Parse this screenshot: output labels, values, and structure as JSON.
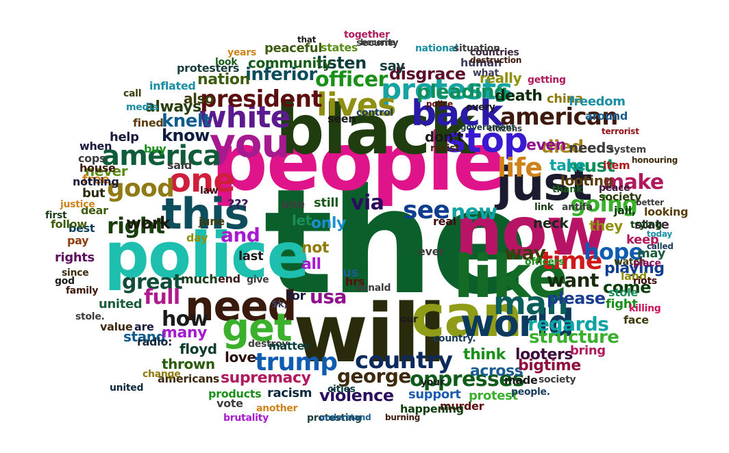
{
  "words": [
    {
      "text": "the",
      "color": "#0b5f2a"
    },
    {
      "text": "people",
      "color": "#e0148a"
    },
    {
      "text": "black",
      "color": "#1f3d0f"
    },
    {
      "text": "will",
      "color": "#2a2a0c"
    },
    {
      "text": "police",
      "color": "#1fbfb0"
    },
    {
      "text": "now",
      "color": "#b81466"
    },
    {
      "text": "like",
      "color": "#136b25"
    },
    {
      "text": "can",
      "color": "#8f9c17"
    },
    {
      "text": "just",
      "color": "#1b1b2f"
    },
    {
      "text": "need",
      "color": "#3a1a0c"
    },
    {
      "text": "this",
      "color": "#0e4d5c"
    },
    {
      "text": "you",
      "color": "#a61a8f"
    },
    {
      "text": "get",
      "color": "#3ab02d"
    },
    {
      "text": "world",
      "color": "#0c3a5e"
    },
    {
      "text": "man",
      "color": "#0c5e5a"
    },
    {
      "text": "one",
      "color": "#d01f3d"
    },
    {
      "text": "back",
      "color": "#2a1aa8"
    },
    {
      "text": "stop",
      "color": "#3a1ad0"
    },
    {
      "text": "protests",
      "color": "#18a3a3"
    },
    {
      "text": "lives",
      "color": "#8f8f14"
    },
    {
      "text": "white",
      "color": "#5c1a8f"
    },
    {
      "text": "president",
      "color": "#5c0f0f"
    },
    {
      "text": "america",
      "color": "#0f5c3a"
    },
    {
      "text": "american",
      "color": "#3d1a0c"
    },
    {
      "text": "life",
      "color": "#d0821a"
    },
    {
      "text": "time",
      "color": "#d01a1a"
    },
    {
      "text": "see",
      "color": "#0f3d8f"
    },
    {
      "text": "country",
      "color": "#0c2a5e"
    },
    {
      "text": "trump",
      "color": "#0f5cb0"
    },
    {
      "text": "george",
      "color": "#3d2a0c"
    },
    {
      "text": "oppresses",
      "color": "#0f5c1a"
    },
    {
      "text": "violence",
      "color": "#2a0f5c"
    },
    {
      "text": "supremacy",
      "color": "#b01a5c"
    },
    {
      "text": "good",
      "color": "#8f7a14"
    },
    {
      "text": "right",
      "color": "#1a3d0c"
    },
    {
      "text": "great",
      "color": "#0f4d3a"
    },
    {
      "text": "full",
      "color": "#b01a8f"
    },
    {
      "text": "how",
      "color": "#1a1a1a"
    },
    {
      "text": "usa",
      "color": "#8f0f8f"
    },
    {
      "text": "want",
      "color": "#1a2a0c"
    },
    {
      "text": "hope",
      "color": "#0f5cb0"
    },
    {
      "text": "going",
      "color": "#3ab02d"
    },
    {
      "text": "make",
      "color": "#b01a5c"
    },
    {
      "text": "must",
      "color": "#0c8f5c"
    },
    {
      "text": "died",
      "color": "#a6821a"
    },
    {
      "text": "officer",
      "color": "#1a8f1a"
    },
    {
      "text": "pleading",
      "color": "#0f8f5c"
    },
    {
      "text": "disgrace",
      "color": "#5c0f2a"
    },
    {
      "text": "listen",
      "color": "#0c3d3d"
    },
    {
      "text": "inferior",
      "color": "#0c4d5c"
    },
    {
      "text": "community",
      "color": "#1a5c1a"
    },
    {
      "text": "nation",
      "color": "#3d5c0c"
    },
    {
      "text": "knelt",
      "color": "#0f5c8f"
    },
    {
      "text": "know",
      "color": "#0c1a3d"
    },
    {
      "text": "always",
      "color": "#2a3d0c"
    },
    {
      "text": "also",
      "color": "#3d3d0c"
    },
    {
      "text": "regards",
      "color": "#0fa3a3"
    },
    {
      "text": "structure",
      "color": "#3ab02d"
    },
    {
      "text": "please",
      "color": "#1a3d8f"
    },
    {
      "text": "come",
      "color": "#0c3d0c"
    },
    {
      "text": "playing",
      "color": "#0f3d8f"
    },
    {
      "text": "looters",
      "color": "#3d0c3d"
    },
    {
      "text": "think",
      "color": "#1a8f1a"
    },
    {
      "text": "across",
      "color": "#1a5c8f"
    },
    {
      "text": "bigtime",
      "color": "#8f0f3d"
    },
    {
      "text": "support",
      "color": "#1a5cb0"
    },
    {
      "text": "protest",
      "color": "#3ab02d"
    },
    {
      "text": "racism",
      "color": "#0c2a3d"
    },
    {
      "text": "love",
      "color": "#2a0c0c"
    },
    {
      "text": "thrown",
      "color": "#2a5c0c"
    },
    {
      "text": "floyd",
      "color": "#0c3d2a"
    },
    {
      "text": "stand",
      "color": "#0f5c8f"
    },
    {
      "text": "many",
      "color": "#a61ad0"
    },
    {
      "text": "are",
      "color": "#1a1a3d"
    },
    {
      "text": "radio:",
      "color": "#1a2a3d"
    },
    {
      "text": "value",
      "color": "#3d2a0c"
    },
    {
      "text": "united",
      "color": "#1a5c3d"
    },
    {
      "text": "much",
      "color": "#1a3d1a"
    },
    {
      "text": "end",
      "color": "#3d1a1a"
    },
    {
      "text": "work",
      "color": "#1a1a0c"
    },
    {
      "text": "never",
      "color": "#5c8f1a"
    },
    {
      "text": "but",
      "color": "#2a2a0c"
    },
    {
      "text": "free",
      "color": "#d0821a"
    },
    {
      "text": "best",
      "color": "#0c3d5c"
    },
    {
      "text": "pay",
      "color": "#8f3d0c"
    },
    {
      "text": "rights",
      "color": "#5c0f5c"
    },
    {
      "text": "dear",
      "color": "#3d5c0c"
    },
    {
      "text": "help",
      "color": "#1a1a3d"
    },
    {
      "text": "fined",
      "color": "#5c3d0c"
    },
    {
      "text": "inflated",
      "color": "#1a8fa3"
    },
    {
      "text": "protesters",
      "color": "#1a3d3d"
    },
    {
      "text": "peaceful",
      "color": "#3d5c0c"
    },
    {
      "text": "states",
      "color": "#5c8f1a"
    },
    {
      "text": "say",
      "color": "#1a3d3d"
    },
    {
      "text": "human",
      "color": "#3d3d5c"
    },
    {
      "text": "really",
      "color": "#8f8f0c"
    },
    {
      "text": "death",
      "color": "#0c2a0c"
    },
    {
      "text": "even",
      "color": "#8f0f8f"
    },
    {
      "text": "take",
      "color": "#0fa3a3"
    },
    {
      "text": "needs",
      "color": "#3d3d3d"
    },
    {
      "text": "looting",
      "color": "#5c3d0c"
    },
    {
      "text": "neck",
      "color": "#1a2a1a"
    },
    {
      "text": "jail,",
      "color": "#0c3d0c"
    },
    {
      "text": "state",
      "color": "#3d2a3d"
    },
    {
      "text": "they",
      "color": "#8f8f0c"
    },
    {
      "text": "keep",
      "color": "#b01a5c"
    },
    {
      "text": "may",
      "color": "#1a5c3d"
    },
    {
      "text": "way",
      "color": "#3d3d0c"
    },
    {
      "text": "new",
      "color": "#0fa3a3"
    },
    {
      "text": "via",
      "color": "#2a0c5c"
    },
    {
      "text": "and",
      "color": "#a61ad0"
    },
    {
      "text": "for",
      "color": "#1a1a3d"
    },
    {
      "text": "china",
      "color": "#8f7a0c"
    },
    {
      "text": "around",
      "color": "#1a5c8f"
    },
    {
      "text": "society",
      "color": "#2a3d0c"
    },
    {
      "text": "fight",
      "color": "#1a8f1a"
    },
    {
      "text": "stole",
      "color": "#1a8f5c"
    },
    {
      "text": "bring",
      "color": "#b01a5c"
    },
    {
      "text": "murder",
      "color": "#5c0c0c"
    },
    {
      "text": "happening",
      "color": "#0c3d0c"
    },
    {
      "text": "americans",
      "color": "#3d2a0c"
    },
    {
      "text": "products",
      "color": "#1a8f1a"
    },
    {
      "text": "cities",
      "color": "#0c3d3d"
    },
    {
      "text": "another",
      "color": "#d0821a"
    },
    {
      "text": "brutality",
      "color": "#a61ad0"
    },
    {
      "text": "protesting",
      "color": "#1a3d3d"
    },
    {
      "text": "understand",
      "color": "#1a5c8f"
    },
    {
      "text": "burning",
      "color": "#3d1a0c"
    },
    {
      "text": "made",
      "color": "#1a1a1a"
    },
    {
      "text": "society",
      "color": "#3d3d3d"
    },
    {
      "text": "people.",
      "color": "#1a3d5c"
    },
    {
      "text": "united",
      "color": "#0c2a3d"
    },
    {
      "text": "land",
      "color": "#8f8f0c"
    },
    {
      "text": "officers",
      "color": "#1a8f1a"
    },
    {
      "text": "riots",
      "color": "#3d0c0c"
    },
    {
      "text": "killing",
      "color": "#d0145c"
    },
    {
      "text": "watch",
      "color": "#3d3d0c"
    },
    {
      "text": "face",
      "color": "#3d3d0c"
    },
    {
      "text": "place",
      "color": "#8f0f5c"
    },
    {
      "text": "called",
      "color": "#1a3d5c"
    },
    {
      "text": "today",
      "color": "#1a8fa3"
    },
    {
      "text": "looking",
      "color": "#5c3d0c"
    },
    {
      "text": "better",
      "color": "#3d3d3d"
    },
    {
      "text": "trying",
      "color": "#0c3d0c"
    },
    {
      "text": "thank",
      "color": "#1a5c1a"
    },
    {
      "text": "antifa",
      "color": "#3d3d3d"
    },
    {
      "text": "peace",
      "color": "#3d1a3d"
    },
    {
      "text": "item",
      "color": "#b01a1a"
    },
    {
      "text": "link",
      "color": "#1a3d1a"
    },
    {
      "text": "what",
      "color": "#3d3d5c"
    },
    {
      "text": "every",
      "color": "#1a1a1a"
    },
    {
      "text": "police",
      "color": "#5c0f0f"
    },
    {
      "text": "control",
      "color": "#1a3d5c"
    },
    {
      "text": "seen",
      "color": "#1a1a1a"
    },
    {
      "text": "don't",
      "color": "#1a1a1a"
    },
    {
      "text": "racist",
      "color": "#3d2a0c"
    },
    {
      "text": "real",
      "color": "#3d0c0c"
    },
    {
      "text": "still",
      "color": "#1a5c1a"
    },
    {
      "text": "only",
      "color": "#1a8fd0"
    },
    {
      "text": "use",
      "color": "#3d3d3d"
    },
    {
      "text": "let",
      "color": "#1a8f5c"
    },
    {
      "text": "all",
      "color": "#a61ad0"
    },
    {
      "text": "not",
      "color": "#8f7a0c"
    },
    {
      "text": "us",
      "color": "#1a5c8f"
    },
    {
      "text": "hrs",
      "color": "#5c0c0c"
    },
    {
      "text": "$k,",
      "color": "#3d3d5c"
    },
    {
      "text": "???",
      "color": "#3d1a5c"
    },
    {
      "text": "last",
      "color": "#1a1a1a"
    },
    {
      "text": "june",
      "color": "#3d3d0c"
    },
    {
      "text": "law",
      "color": "#3d0c0c"
    },
    {
      "text": "day",
      "color": "#8f8f0c"
    },
    {
      "text": "said",
      "color": "#3d3d3d"
    },
    {
      "text": "buy",
      "color": "#1a8f1a"
    },
    {
      "text": "media",
      "color": "#1a8fa3"
    },
    {
      "text": "call",
      "color": "#3d3d0c"
    },
    {
      "text": "when",
      "color": "#1a1a3d"
    },
    {
      "text": "cops",
      "color": "#3d3d3d"
    },
    {
      "text": "nothing",
      "color": "#1a1a3d"
    },
    {
      "text": "house",
      "color": "#3d1a0c"
    },
    {
      "text": "follow",
      "color": "#3d5c0c"
    },
    {
      "text": "justice",
      "color": "#d0821a"
    },
    {
      "text": "first",
      "color": "#1a3d1a"
    },
    {
      "text": "since",
      "color": "#3d2a0c"
    },
    {
      "text": "god",
      "color": "#1a1a1a"
    },
    {
      "text": "family",
      "color": "#3d1a0c"
    },
    {
      "text": "stole.",
      "color": "#3d3d3d"
    },
    {
      "text": "change",
      "color": "#8f7a0c"
    },
    {
      "text": "destroy",
      "color": "#3d3d3d"
    },
    {
      "text": "matter",
      "color": "#0c3d3d"
    },
    {
      "text": "give",
      "color": "#3d3d3d"
    },
    {
      "text": "years",
      "color": "#d0821a"
    },
    {
      "text": "look",
      "color": "#1a5c1a"
    },
    {
      "text": "that",
      "color": "#1a1a1a"
    },
    {
      "text": "national",
      "color": "#1a8fa3"
    },
    {
      "text": "situation",
      "color": "#3d3d3d"
    },
    {
      "text": "together",
      "color": "#b01a5c"
    },
    {
      "text": "countries",
      "color": "#3d2a3d"
    },
    {
      "text": "getting",
      "color": "#b01a5c"
    },
    {
      "text": "destruction",
      "color": "#3d1a0c"
    },
    {
      "text": "freedom",
      "color": "#1a8fa3"
    },
    {
      "text": "terrorist",
      "color": "#8f0f0f"
    },
    {
      "text": "system",
      "color": "#3d3d3d"
    },
    {
      "text": "honouring",
      "color": "#3d2a0c"
    },
    {
      "text": "citizens",
      "color": "#3d3d3d"
    },
    {
      "text": "government",
      "color": "#1a3d3d"
    },
    {
      "text": "security",
      "color": "#3d3d3d"
    },
    {
      "text": "become",
      "color": "#3d3d3d"
    },
    {
      "text": "your",
      "color": "#1a1a1a"
    },
    {
      "text": "donald",
      "color": "#3d3d3d"
    },
    {
      "text": "country.",
      "color": "#1a3d5c"
    },
    {
      "text": "ever",
      "color": "#3d3d3d"
    },
    {
      "text": "our",
      "color": "#1a1a1a"
    },
    {
      "text": "vote",
      "color": "#3d3d3d"
    },
    {
      "text": "sad",
      "color": "#d0821a"
    },
    {
      "text": "hate",
      "color": "#3d3d3d"
    },
    {
      "text": "□□□□□□□□□",
      "color": "#1a5c5c"
    }
  ]
}
